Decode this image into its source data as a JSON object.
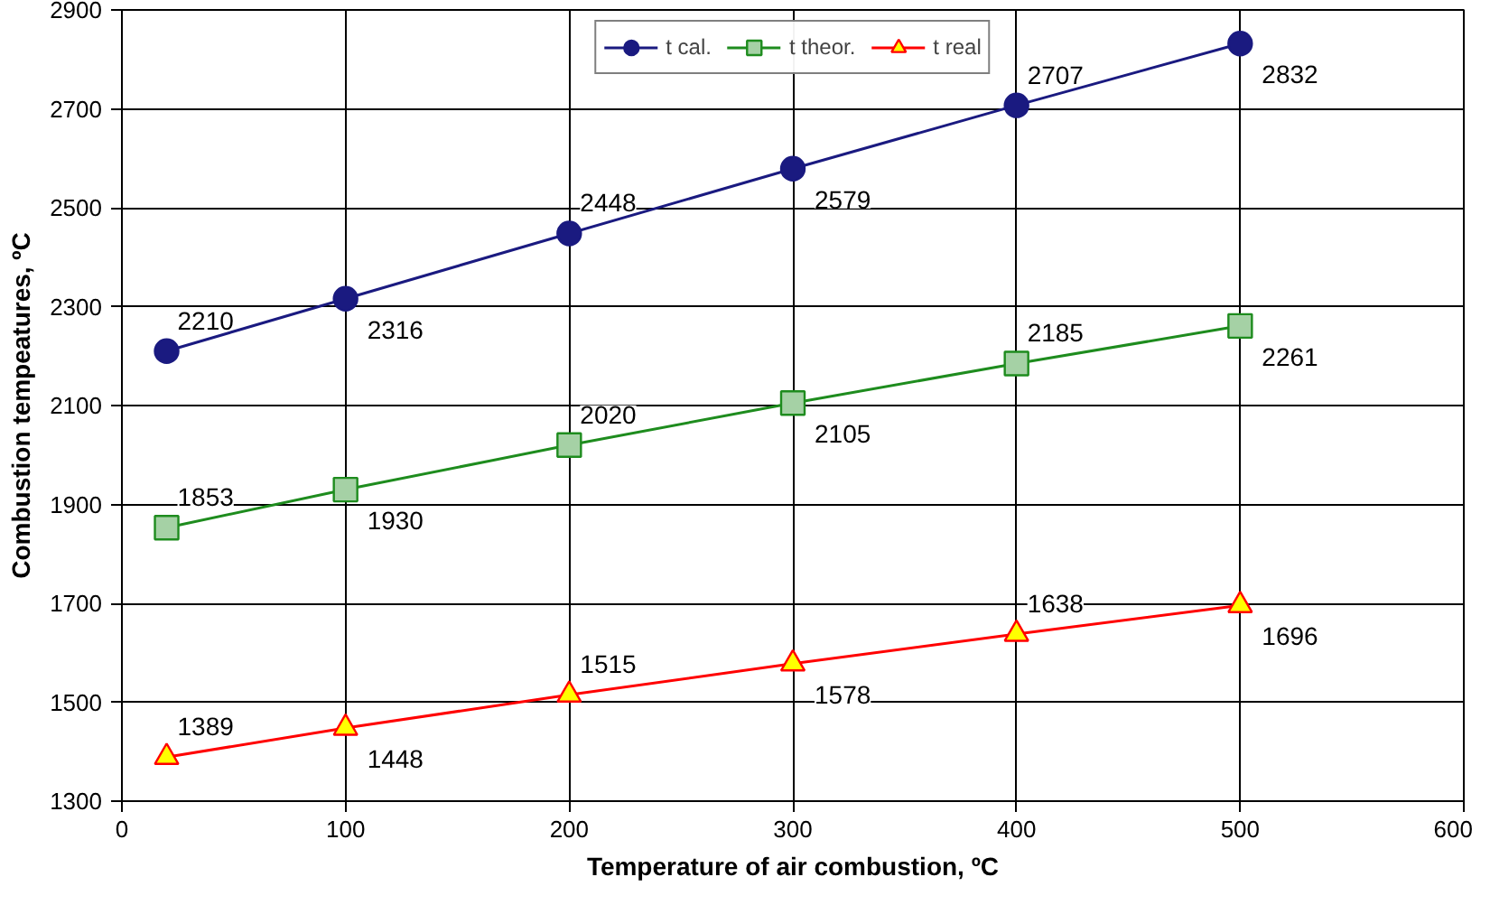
{
  "chart_data": {
    "type": "line",
    "xlabel": "Temperature of air combustion, ºC",
    "ylabel": "Combustion tempeatures, ºC",
    "x": [
      20,
      100,
      200,
      300,
      400,
      500
    ],
    "series": [
      {
        "name": "t cal.",
        "color": "#1a1a80",
        "marker": "circle",
        "values": [
          2210,
          2316,
          2448,
          2579,
          2707,
          2832
        ]
      },
      {
        "name": "t theor.",
        "color": "#1e8c1e",
        "marker": "square",
        "values": [
          1853,
          1930,
          2020,
          2105,
          2185,
          2261
        ]
      },
      {
        "name": "t real",
        "color": "#ff0000",
        "marker": "triangle",
        "values": [
          1389,
          1448,
          1515,
          1578,
          1638,
          1696
        ]
      }
    ],
    "xlim": [
      0,
      600
    ],
    "xticks": [
      0,
      100,
      200,
      300,
      400,
      500,
      600
    ],
    "ylim": [
      1300,
      2900
    ],
    "yticks": [
      1300,
      1500,
      1700,
      1900,
      2100,
      2300,
      2500,
      2700,
      2900
    ],
    "grid": true,
    "legend": "top",
    "data_labels": true
  }
}
